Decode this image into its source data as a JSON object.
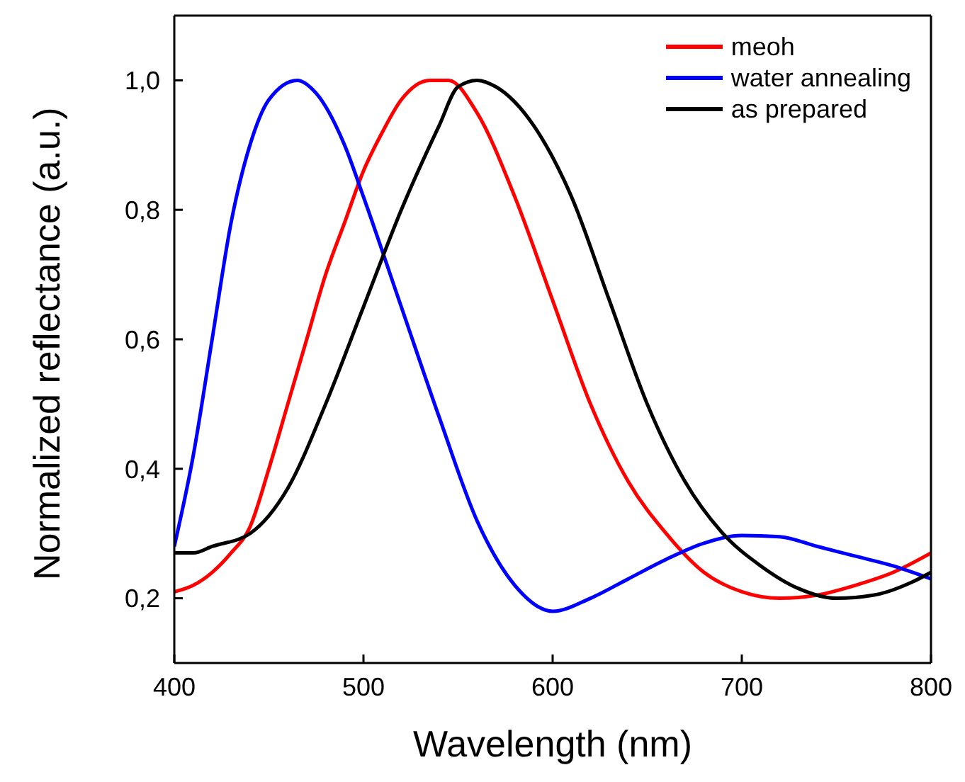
{
  "chart_data": {
    "type": "line",
    "xlabel": "Wavelength (nm)",
    "ylabel": "Normalized reflectance (a.u.)",
    "xlim": [
      400,
      800
    ],
    "xticks": [
      400,
      500,
      600,
      700,
      800
    ],
    "ylim": [
      0.1,
      1.1
    ],
    "yticks": [
      {
        "value": 0.2,
        "label": "0,2"
      },
      {
        "value": 0.4,
        "label": "0,4"
      },
      {
        "value": 0.6,
        "label": "0,6"
      },
      {
        "value": 0.8,
        "label": "0,8"
      },
      {
        "value": 1.0,
        "label": "1,0"
      }
    ],
    "legend": "top right",
    "grid": false,
    "marker": "none",
    "line_style": "solid",
    "series": [
      {
        "name": "meoh",
        "color": "#ff0000",
        "x": [
          400,
          410,
          420,
          430,
          440,
          450,
          460,
          470,
          480,
          490,
          500,
          510,
          520,
          535,
          545,
          560,
          580,
          600,
          620,
          640,
          660,
          680,
          700,
          720,
          740,
          760,
          780,
          800
        ],
        "values": [
          0.21,
          0.22,
          0.24,
          0.27,
          0.31,
          0.4,
          0.5,
          0.6,
          0.7,
          0.78,
          0.86,
          0.92,
          0.97,
          1.0,
          1.0,
          0.95,
          0.82,
          0.66,
          0.5,
          0.38,
          0.3,
          0.24,
          0.21,
          0.2,
          0.205,
          0.22,
          0.24,
          0.27
        ]
      },
      {
        "name": "water annealing",
        "color": "#0000ff",
        "x": [
          400,
          410,
          420,
          430,
          440,
          450,
          465,
          475,
          490,
          500,
          520,
          540,
          560,
          580,
          600,
          620,
          640,
          660,
          680,
          700,
          720,
          740,
          760,
          780,
          800
        ],
        "values": [
          0.28,
          0.42,
          0.6,
          0.78,
          0.9,
          0.97,
          1.0,
          0.98,
          0.9,
          0.82,
          0.65,
          0.48,
          0.32,
          0.22,
          0.18,
          0.2,
          0.23,
          0.26,
          0.285,
          0.297,
          0.295,
          0.28,
          0.265,
          0.25,
          0.23
        ]
      },
      {
        "name": "as prepared",
        "color": "#000000",
        "x": [
          400,
          410,
          420,
          440,
          460,
          480,
          500,
          520,
          540,
          550,
          560,
          570,
          590,
          610,
          630,
          650,
          670,
          690,
          710,
          730,
          750,
          770,
          790,
          800
        ],
        "values": [
          0.27,
          0.27,
          0.28,
          0.3,
          0.37,
          0.5,
          0.65,
          0.8,
          0.93,
          0.99,
          1.0,
          0.99,
          0.93,
          0.82,
          0.66,
          0.5,
          0.38,
          0.3,
          0.25,
          0.215,
          0.2,
          0.205,
          0.225,
          0.24
        ]
      }
    ]
  }
}
